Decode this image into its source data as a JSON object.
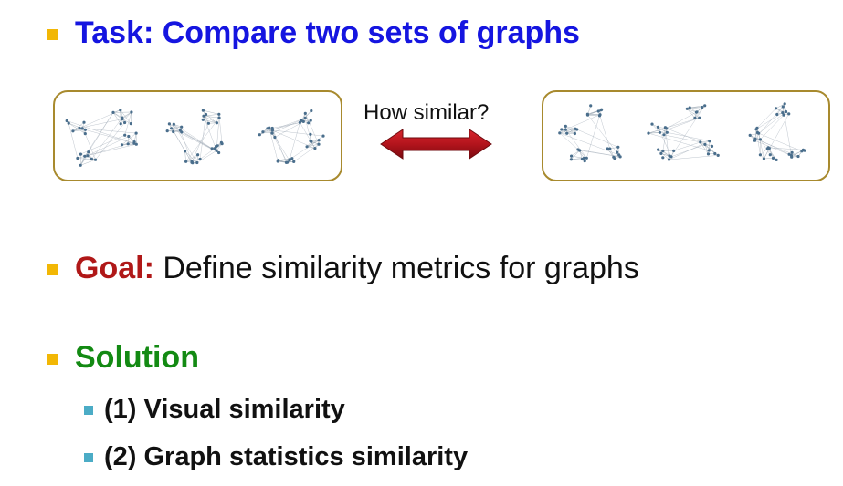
{
  "task": {
    "label": "Task: Compare two sets of graphs"
  },
  "middle": {
    "question": "How similar?"
  },
  "goal": {
    "label": "Goal:",
    "text": " Define similarity metrics for graphs"
  },
  "solution": {
    "label": "Solution",
    "items": [
      "(1) Visual similarity",
      "(2) Graph statistics similarity"
    ]
  },
  "colors": {
    "task": "#1515e0",
    "goal": "#b01818",
    "solution": "#138a13",
    "bullet": "#f2b705",
    "sub_bullet": "#4bacc6",
    "box_border": "#a88a2e",
    "arrow": "#b3141c",
    "node": "#4a6e8c"
  },
  "graph_sets": {
    "left": [
      {
        "clusters": 4,
        "nodes_per_cluster": 8,
        "seed": 3
      },
      {
        "clusters": 4,
        "nodes_per_cluster": 8,
        "seed": 11
      },
      {
        "clusters": 4,
        "nodes_per_cluster": 8,
        "seed": 27
      }
    ],
    "right": [
      {
        "clusters": 4,
        "nodes_per_cluster": 8,
        "seed": 5
      },
      {
        "clusters": 4,
        "nodes_per_cluster": 8,
        "seed": 19
      },
      {
        "clusters": 4,
        "nodes_per_cluster": 8,
        "seed": 41
      }
    ]
  }
}
